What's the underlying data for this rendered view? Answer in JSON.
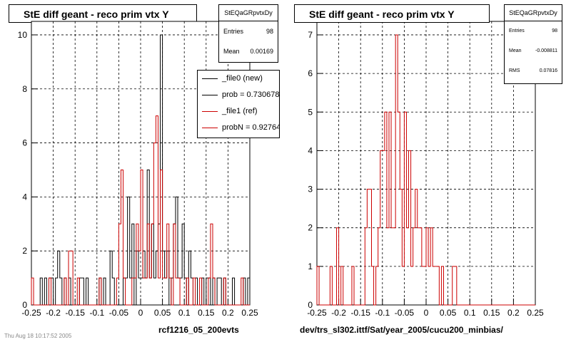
{
  "left": {
    "title": "StE  diff geant - reco prim vtx Y",
    "stats": {
      "name": "StEQaGRpvtxDy",
      "entries_label": "Entries",
      "entries": "98",
      "mean_label": "Mean",
      "mean": "0.00169"
    },
    "legend": [
      {
        "label": "_file0 (new)",
        "color": "#000000"
      },
      {
        "label": "prob = 0.730678",
        "color": "#000000"
      },
      {
        "label": "_file1 (ref)",
        "color": "#cc0000"
      },
      {
        "label": "probN = 0.927642",
        "color": "#cc0000"
      }
    ],
    "footer": "rcf1216_05_200evts",
    "timestamp": "Thu Aug 18 10:17:52 2005"
  },
  "right": {
    "title": "StE  diff geant - reco prim vtx Y",
    "stats": {
      "name": "StEQaGRpvtxDy",
      "entries_label": "Entries",
      "entries": "98",
      "mean_label": "Mean",
      "mean": "-0.008811",
      "rms_label": "RMS",
      "rms": "0.07816"
    },
    "footer": "dev/trs_sl302.ittf/Sat/year_2005/cucu200_minbias/"
  },
  "chart_data": [
    {
      "type": "histogram",
      "xlim": [
        -0.25,
        0.25
      ],
      "ylim": [
        0,
        10.5
      ],
      "xticks": [
        "-0.25",
        "-0.2",
        "-0.15",
        "-0.1",
        "-0.05",
        "0",
        "0.05",
        "0.1",
        "0.15",
        "0.2",
        "0.25"
      ],
      "yticks": [
        "0",
        "2",
        "4",
        "6",
        "8",
        "10"
      ],
      "grid": true,
      "bin_width": 0.005,
      "series": [
        {
          "name": "_file0 (new)",
          "color": "#000000",
          "counts": [
            0,
            0,
            0,
            0,
            1,
            0,
            1,
            0,
            1,
            1,
            0,
            1,
            2,
            1,
            0,
            1,
            0,
            1,
            0,
            0,
            0,
            0,
            1,
            1,
            0,
            1,
            0,
            0,
            0,
            0,
            0,
            1,
            0,
            1,
            0,
            0,
            2,
            1,
            0,
            0,
            0,
            0,
            1,
            1,
            4,
            1,
            3,
            0,
            2,
            1,
            1,
            2,
            1,
            5,
            1,
            3,
            1,
            2,
            3,
            10,
            2,
            1,
            2,
            0,
            1,
            3,
            4,
            1,
            1,
            3,
            1,
            0,
            2,
            1,
            0,
            1,
            0,
            0,
            1,
            0,
            1,
            1,
            0,
            1,
            0,
            1,
            1,
            0,
            1,
            0,
            0,
            0,
            1,
            0,
            0,
            0,
            0,
            1,
            0,
            1
          ]
        },
        {
          "name": "_file1 (ref)",
          "color": "#cc0000",
          "counts": [
            1,
            0,
            0,
            0,
            0,
            0,
            0,
            0,
            1,
            0,
            0,
            0,
            0,
            0,
            0,
            1,
            0,
            2,
            2,
            0,
            0,
            1,
            0,
            0,
            0,
            0,
            0,
            0,
            0,
            0,
            0,
            1,
            0,
            0,
            0,
            0,
            0,
            0,
            0,
            1,
            3,
            5,
            1,
            0,
            0,
            0,
            1,
            1,
            3,
            2,
            5,
            1,
            1,
            3,
            1,
            3,
            6,
            7,
            1,
            5,
            1,
            1,
            3,
            1,
            0,
            3,
            1,
            1,
            0,
            0,
            0,
            1,
            0,
            0,
            1,
            0,
            0,
            1,
            0,
            0,
            0,
            1,
            3,
            1,
            0,
            0,
            0,
            0,
            1,
            0,
            0,
            0,
            0,
            0,
            0,
            0,
            1,
            0,
            0,
            0
          ]
        }
      ]
    },
    {
      "type": "histogram",
      "xlim": [
        -0.25,
        0.25
      ],
      "ylim": [
        0,
        7.35
      ],
      "xticks": [
        "-0.25",
        "-0.2",
        "-0.15",
        "-0.1",
        "-0.05",
        "0",
        "0.05",
        "0.1",
        "0.15",
        "0.2",
        "0.25"
      ],
      "yticks": [
        "0",
        "1",
        "2",
        "3",
        "4",
        "5",
        "6",
        "7"
      ],
      "grid": true,
      "bin_width": 0.005,
      "series": [
        {
          "color": "#cc0000",
          "counts": [
            1,
            0,
            0,
            0,
            0,
            0,
            1,
            0,
            0,
            2,
            0,
            1,
            0,
            0,
            0,
            0,
            1,
            0,
            0,
            0,
            0,
            0,
            2,
            3,
            3,
            1,
            0,
            1,
            2,
            4,
            4,
            5,
            2,
            5,
            2,
            2,
            7,
            5,
            3,
            1,
            5,
            2,
            4,
            1,
            2,
            3,
            2,
            2,
            1,
            1,
            2,
            1,
            2,
            1,
            1,
            1,
            0,
            1,
            0,
            0,
            0,
            0,
            1,
            1,
            0,
            0,
            0,
            0,
            0,
            0,
            0,
            0,
            0,
            0,
            0,
            0,
            0,
            0,
            0,
            0,
            0,
            0,
            0,
            0,
            0,
            0,
            0,
            0,
            0,
            0,
            0,
            0,
            0,
            0,
            0,
            0,
            0,
            0,
            0,
            0
          ]
        }
      ]
    }
  ]
}
